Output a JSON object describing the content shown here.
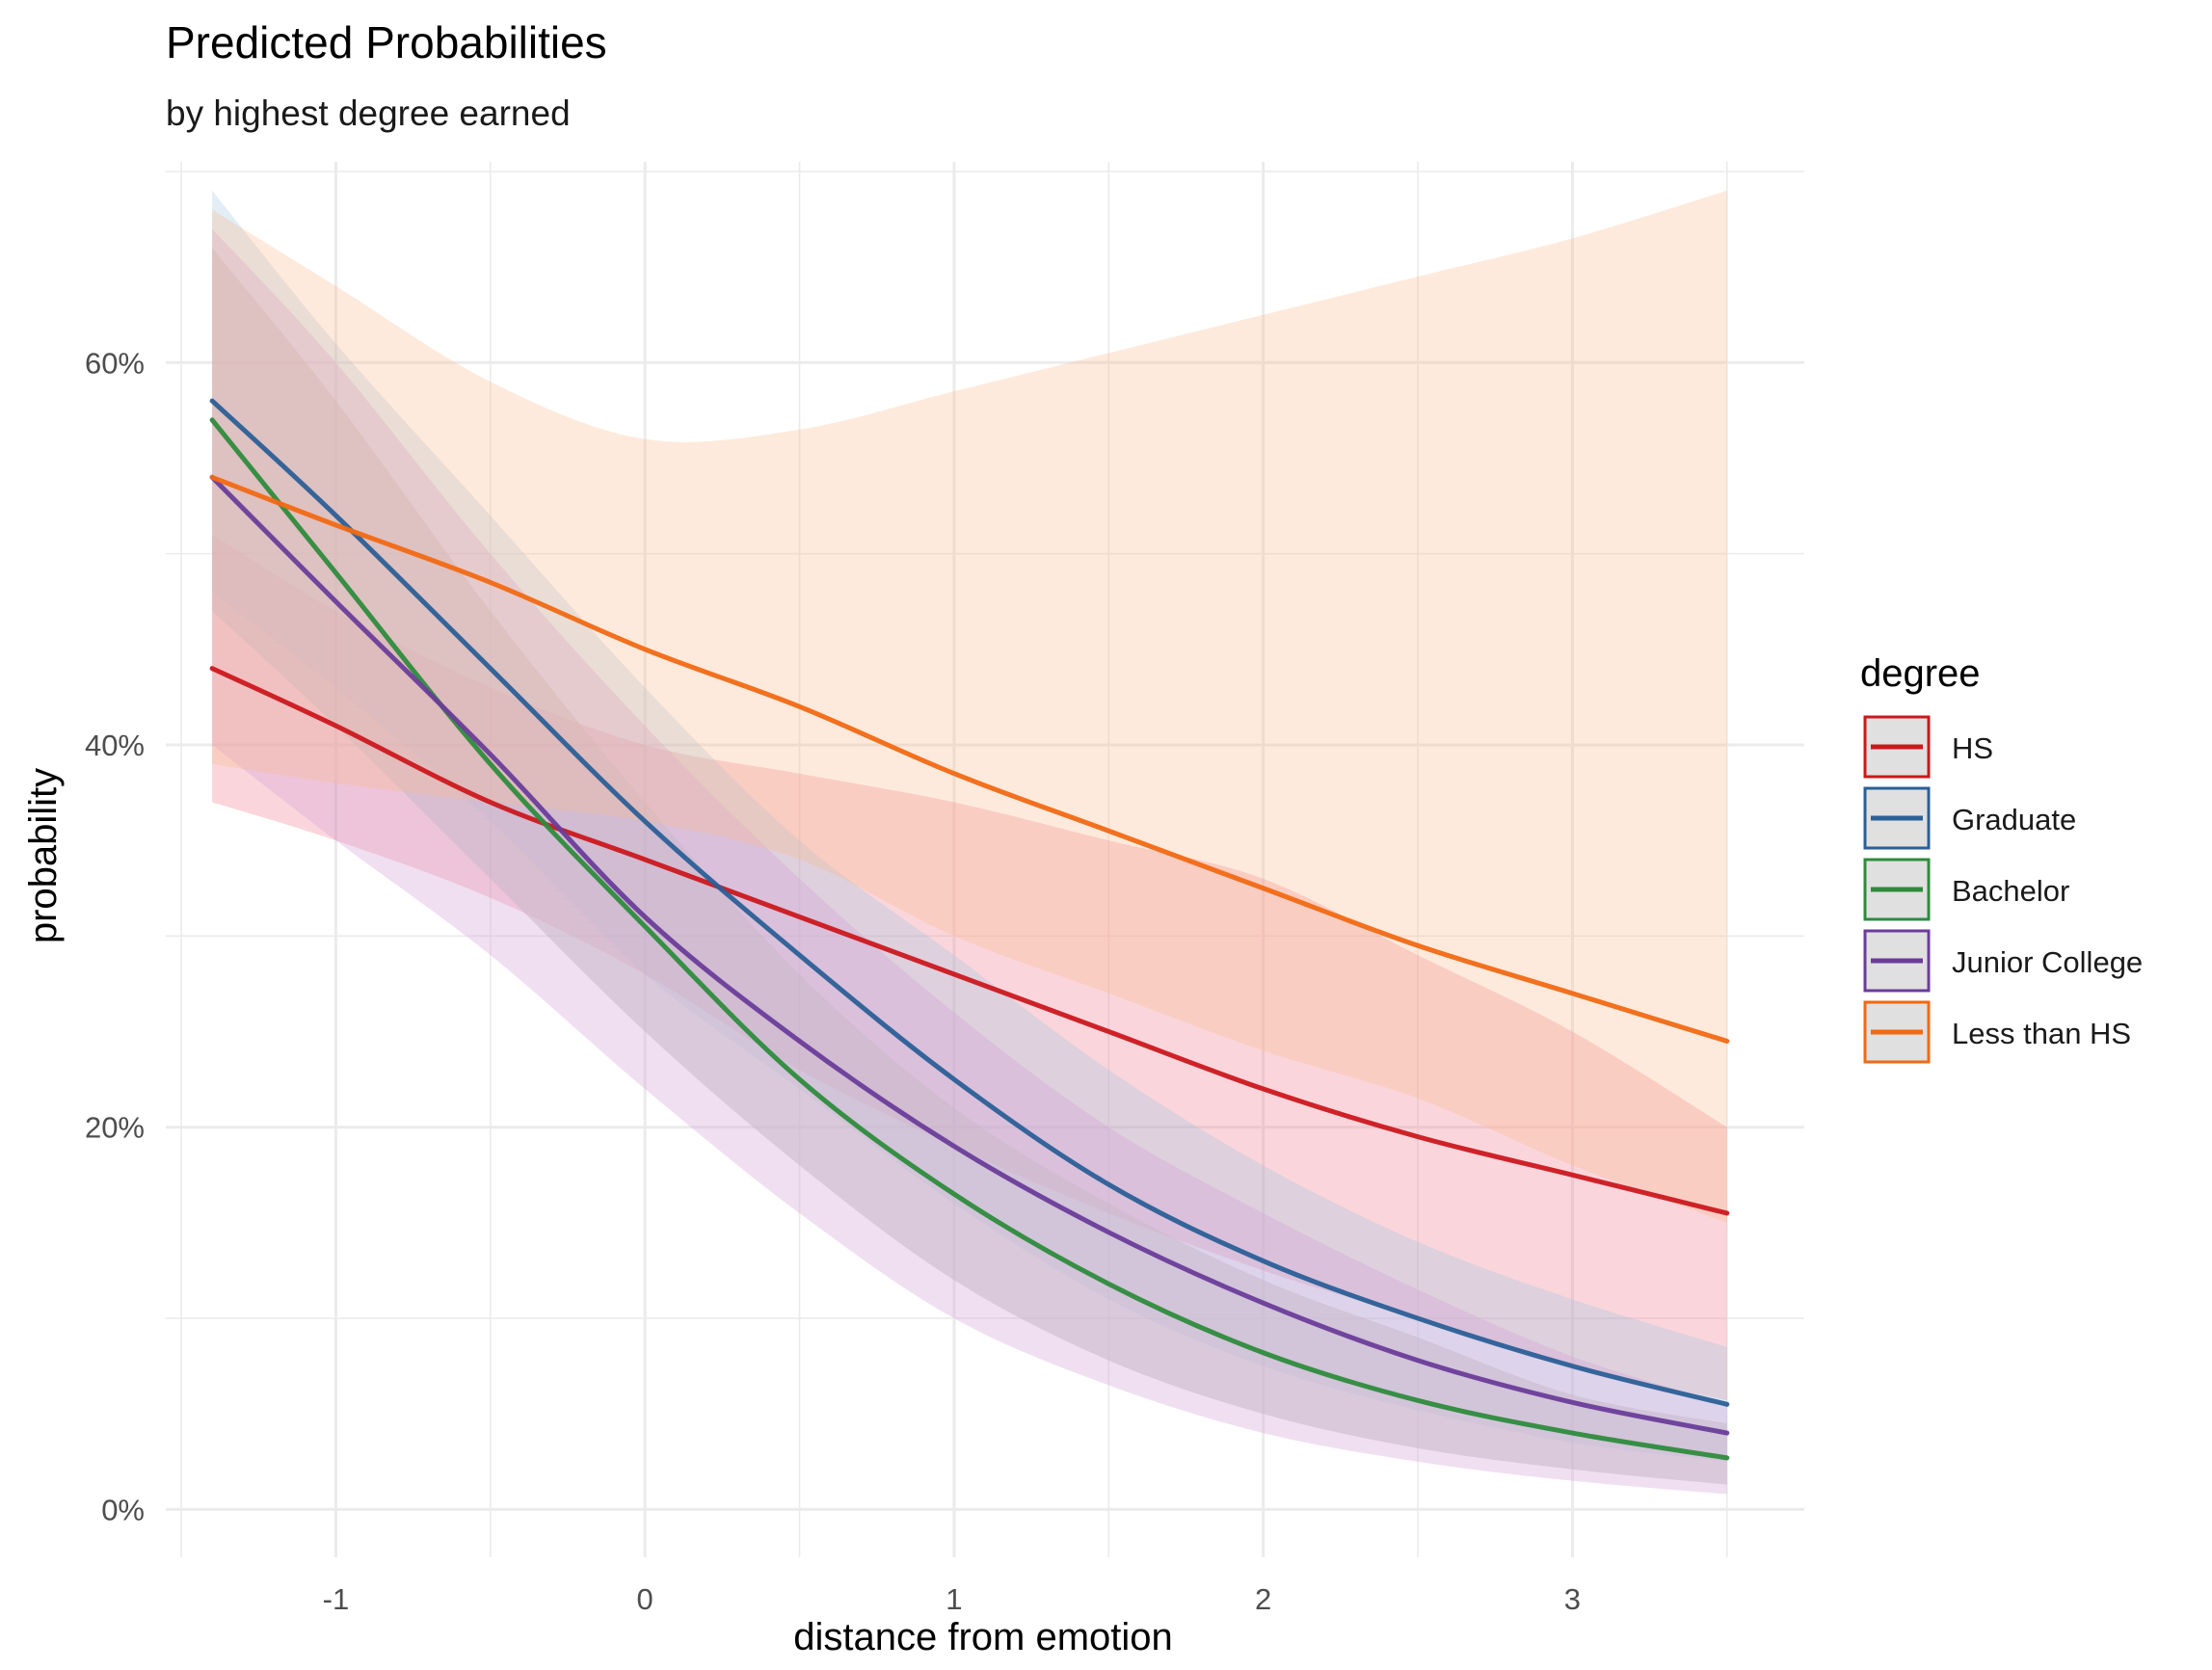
{
  "chart_data": {
    "type": "line",
    "title": "Predicted Probabilities",
    "subtitle": "by highest degree earned",
    "xlabel": "distance from emotion",
    "ylabel": "probability",
    "xlim": [
      -1.55,
      3.75
    ],
    "ylim": [
      -0.025,
      0.705
    ],
    "x_ticks": [
      -1,
      0,
      1,
      2,
      3
    ],
    "x_tick_labels": [
      "-1",
      "0",
      "1",
      "2",
      "3"
    ],
    "y_ticks": [
      0,
      0.2,
      0.4,
      0.6
    ],
    "y_tick_labels": [
      "0%",
      "20%",
      "40%",
      "60%"
    ],
    "grid": true,
    "legend": {
      "title": "degree",
      "position": "right"
    },
    "x": [
      -1.4,
      -1.0,
      -0.5,
      0.0,
      0.5,
      1.0,
      1.5,
      2.0,
      2.5,
      3.0,
      3.5
    ],
    "series": [
      {
        "name": "HS",
        "color": "#cb181d",
        "ribbon_color": "#f0778a",
        "ribbon_opacity": 0.3,
        "values": [
          0.44,
          0.41,
          0.37,
          0.34,
          0.31,
          0.28,
          0.25,
          0.22,
          0.195,
          0.175,
          0.155
        ],
        "lower": [
          0.37,
          0.35,
          0.32,
          0.28,
          0.23,
          0.19,
          0.155,
          0.125,
          0.1,
          0.075,
          0.057
        ],
        "upper": [
          0.51,
          0.47,
          0.43,
          0.4,
          0.385,
          0.37,
          0.35,
          0.33,
          0.29,
          0.25,
          0.2
        ]
      },
      {
        "name": "Graduate",
        "color": "#2b5f97",
        "ribbon_color": "#9ec3e0",
        "ribbon_opacity": 0.3,
        "values": [
          0.58,
          0.52,
          0.44,
          0.36,
          0.29,
          0.225,
          0.17,
          0.13,
          0.1,
          0.075,
          0.055
        ],
        "lower": [
          0.48,
          0.43,
          0.36,
          0.28,
          0.22,
          0.16,
          0.11,
          0.075,
          0.052,
          0.035,
          0.025
        ],
        "upper": [
          0.69,
          0.61,
          0.52,
          0.43,
          0.35,
          0.29,
          0.23,
          0.18,
          0.14,
          0.11,
          0.085
        ]
      },
      {
        "name": "Bachelor",
        "color": "#2e8b3d",
        "ribbon_color": "#c3c3c3",
        "ribbon_opacity": 0.55,
        "values": [
          0.57,
          0.49,
          0.39,
          0.305,
          0.225,
          0.165,
          0.118,
          0.082,
          0.057,
          0.04,
          0.027
        ],
        "lower": [
          0.47,
          0.41,
          0.33,
          0.25,
          0.18,
          0.12,
          0.078,
          0.05,
          0.032,
          0.021,
          0.013
        ],
        "upper": [
          0.66,
          0.58,
          0.47,
          0.37,
          0.28,
          0.21,
          0.16,
          0.12,
          0.09,
          0.06,
          0.045
        ]
      },
      {
        "name": "Junior College",
        "color": "#6a3d9a",
        "ribbon_color": "#d4a4d8",
        "ribbon_opacity": 0.35,
        "values": [
          0.54,
          0.475,
          0.395,
          0.31,
          0.245,
          0.19,
          0.145,
          0.108,
          0.078,
          0.056,
          0.04
        ],
        "lower": [
          0.4,
          0.35,
          0.29,
          0.22,
          0.155,
          0.1,
          0.065,
          0.04,
          0.025,
          0.015,
          0.008
        ],
        "upper": [
          0.67,
          0.6,
          0.5,
          0.41,
          0.33,
          0.26,
          0.2,
          0.155,
          0.115,
          0.08,
          0.055
        ]
      },
      {
        "name": "Less than HS",
        "color": "#f16913",
        "ribbon_color": "#fdb98c",
        "ribbon_opacity": 0.3,
        "values": [
          0.54,
          0.515,
          0.485,
          0.45,
          0.42,
          0.385,
          0.355,
          0.325,
          0.295,
          0.27,
          0.245
        ],
        "lower": [
          0.39,
          0.38,
          0.37,
          0.36,
          0.34,
          0.3,
          0.27,
          0.24,
          0.215,
          0.18,
          0.15
        ],
        "upper": [
          0.68,
          0.64,
          0.59,
          0.56,
          0.565,
          0.585,
          0.605,
          0.625,
          0.645,
          0.665,
          0.69
        ]
      }
    ]
  }
}
